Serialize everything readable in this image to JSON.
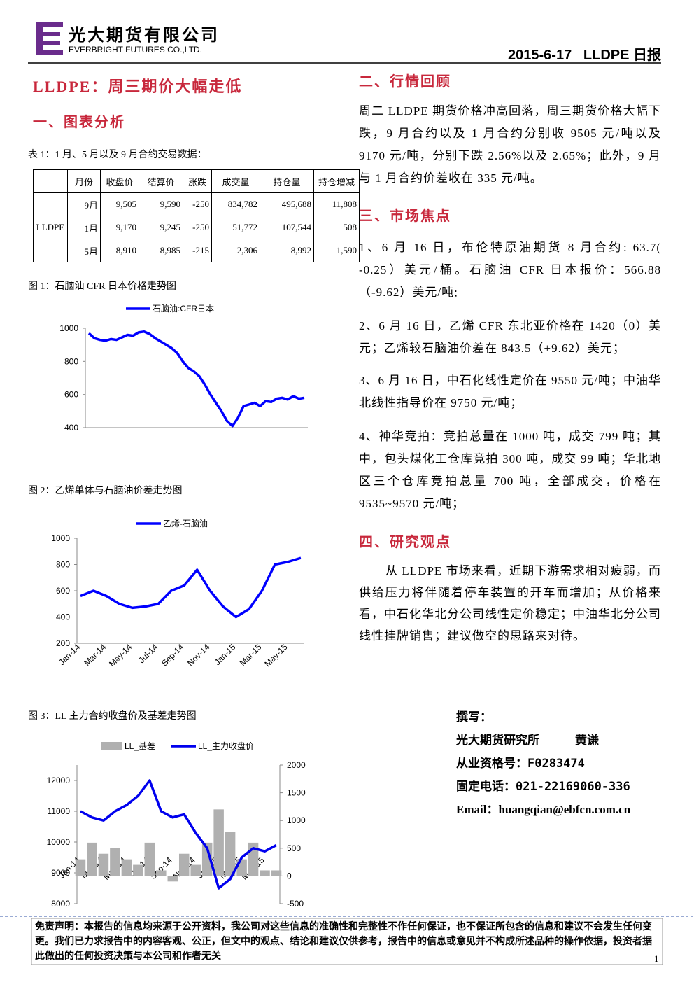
{
  "header": {
    "company_cn": "光大期货有限公司",
    "company_en": "EVERBRIGHT FUTURES CO.,LTD.",
    "report": "2015-6-17   LLDPE 日报"
  },
  "left": {
    "title": "LLDPE：周三期价大幅走低",
    "section1": "一、图表分析",
    "table_caption": "表 1：1 月、5 月以及 9 月合约交易数据：",
    "fig1": "图 1：石脑油 CFR 日本价格走势图",
    "fig2": "图 2：乙烯单体与石脑油价差走势图",
    "fig3": "图 3：LL 主力合约收盘价及基差走势图"
  },
  "table": {
    "header": [
      "月份",
      "收盘价",
      "结算价",
      "涨跌",
      "成交量",
      "持仓量",
      "持仓增减"
    ],
    "group": "LLDPE",
    "rows": [
      [
        "9月",
        "9,505",
        "9,590",
        "-250",
        "834,782",
        "495,688",
        "11,808"
      ],
      [
        "1月",
        "9,170",
        "9,245",
        "-250",
        "51,772",
        "107,544",
        "508"
      ],
      [
        "5月",
        "8,910",
        "8,985",
        "-215",
        "2,306",
        "8,992",
        "1,590"
      ]
    ]
  },
  "right": {
    "section2": "二、行情回顾",
    "p2": "周二 LLDPE 期货价格冲高回落，周三期货价格大幅下跌，9 月合约以及 1 月合约分别收 9505 元/吨以及 9170 元/吨，分别下跌 2.56%以及 2.65%；此外，9 月与 1 月合约价差收在 335 元/吨。",
    "section3": "三、市场焦点",
    "items": [
      "1、6 月 16 日，布伦特原油期货 8 月合约: 63.7( -0.25）美元/桶。石脑油 CFR 日本报价：566.88（-9.62）美元/吨;",
      "2、6 月 16 日，乙烯 CFR 东北亚价格在 1420（0）美元；乙烯较石脑油价差在 843.5（+9.62）美元；",
      "3、6 月 16 日，中石化线性定价在 9550 元/吨；中油华北线性指导价在 9750 元/吨；",
      "4、神华竞拍：竞拍总量在 1000 吨，成交 799 吨；其中，包头煤化工仓库竞拍 300 吨，成交 99 吨；华北地区三个仓库竞拍总量 700 吨，全部成交，价格在 9535~9570 元/吨；"
    ],
    "section4": "四、研究观点",
    "p4": "从 LLDPE 市场来看，近期下游需求相对疲弱，而供给压力将伴随着停车装置的开车而增加；从价格来看，中石化华北分公司线性定价稳定；中油华北分公司线性挂牌销售；建议做空的思路来对待。"
  },
  "author": {
    "label": "撰写：",
    "org": "光大期货研究所",
    "name": "黄谦",
    "license": "从业资格号：F0283474",
    "phone": "固定电话：021-22169060-336",
    "email": "Email：huangqian@ebfcn.com.cn"
  },
  "footer": {
    "disclaimer": "免责声明：本报告的信息均来源于公开资料，我公司对这些信息的准确性和完整性不作任何保证，也不保证所包含的信息和建议不会发生任何变更。我们已力求报告中的内容客观、公正，但文中的观点、结论和建议仅供参考，报告中的信息或意见并不构成所述品种的操作依据，投资者据此做出的任何投资决策与本公司和作者无关",
    "page": "1"
  },
  "chart_data": [
    {
      "type": "line",
      "ylim": [
        400,
        1000
      ],
      "yticks": [
        400,
        600,
        800,
        1000
      ],
      "series": [
        {
          "name": "石脑油:CFR日本",
          "color": "#0000ff",
          "values": [
            970,
            940,
            930,
            925,
            935,
            930,
            945,
            960,
            955,
            975,
            980,
            965,
            940,
            920,
            900,
            880,
            850,
            800,
            760,
            740,
            710,
            660,
            600,
            550,
            500,
            440,
            410,
            460,
            530,
            540,
            550,
            530,
            560,
            555,
            575,
            580,
            570,
            590,
            575,
            580
          ]
        }
      ]
    },
    {
      "type": "line",
      "x": [
        "Jan-14",
        null,
        "Mar-14",
        null,
        "May-14",
        null,
        "Jul-14",
        null,
        "Sep-14",
        null,
        "Nov-14",
        null,
        "Jan-15",
        null,
        "Mar-15",
        null,
        "May-15",
        null
      ],
      "ylim": [
        200,
        1000
      ],
      "yticks": [
        200,
        400,
        600,
        800,
        1000
      ],
      "series": [
        {
          "name": "乙烯-石脑油",
          "color": "#0000ff",
          "values": [
            560,
            600,
            560,
            500,
            470,
            480,
            500,
            600,
            640,
            760,
            600,
            480,
            400,
            460,
            600,
            800,
            820,
            850
          ]
        }
      ]
    },
    {
      "type": "combo",
      "x": [
        "Jan-14",
        null,
        "Mar-14",
        null,
        "May-14",
        null,
        "Jul-14",
        null,
        "Sep-14",
        null,
        "Nov-14",
        null,
        "Jan-15",
        null,
        "Mar-15",
        null,
        "May-15",
        null
      ],
      "ylim": [
        8000,
        12500
      ],
      "yticks": [
        8000,
        9000,
        10000,
        11000,
        12000
      ],
      "y2lim": [
        -500,
        2000
      ],
      "y2ticks": [
        -500,
        0,
        500,
        1000,
        1500,
        2000
      ],
      "series": [
        {
          "name": "LL_基差",
          "color": "#b0b0b0",
          "type": "bar",
          "axis": "y2",
          "values": [
            300,
            600,
            400,
            500,
            300,
            200,
            600,
            100,
            -100,
            400,
            200,
            600,
            1200,
            800,
            300,
            600,
            100,
            100
          ]
        },
        {
          "name": "LL_主力收盘价",
          "color": "#0000ee",
          "type": "line",
          "values": [
            11000,
            10800,
            10700,
            11000,
            11200,
            11500,
            12000,
            11000,
            10800,
            10900,
            10300,
            9800,
            8500,
            8800,
            9500,
            9800,
            9700,
            9900
          ]
        }
      ]
    }
  ]
}
